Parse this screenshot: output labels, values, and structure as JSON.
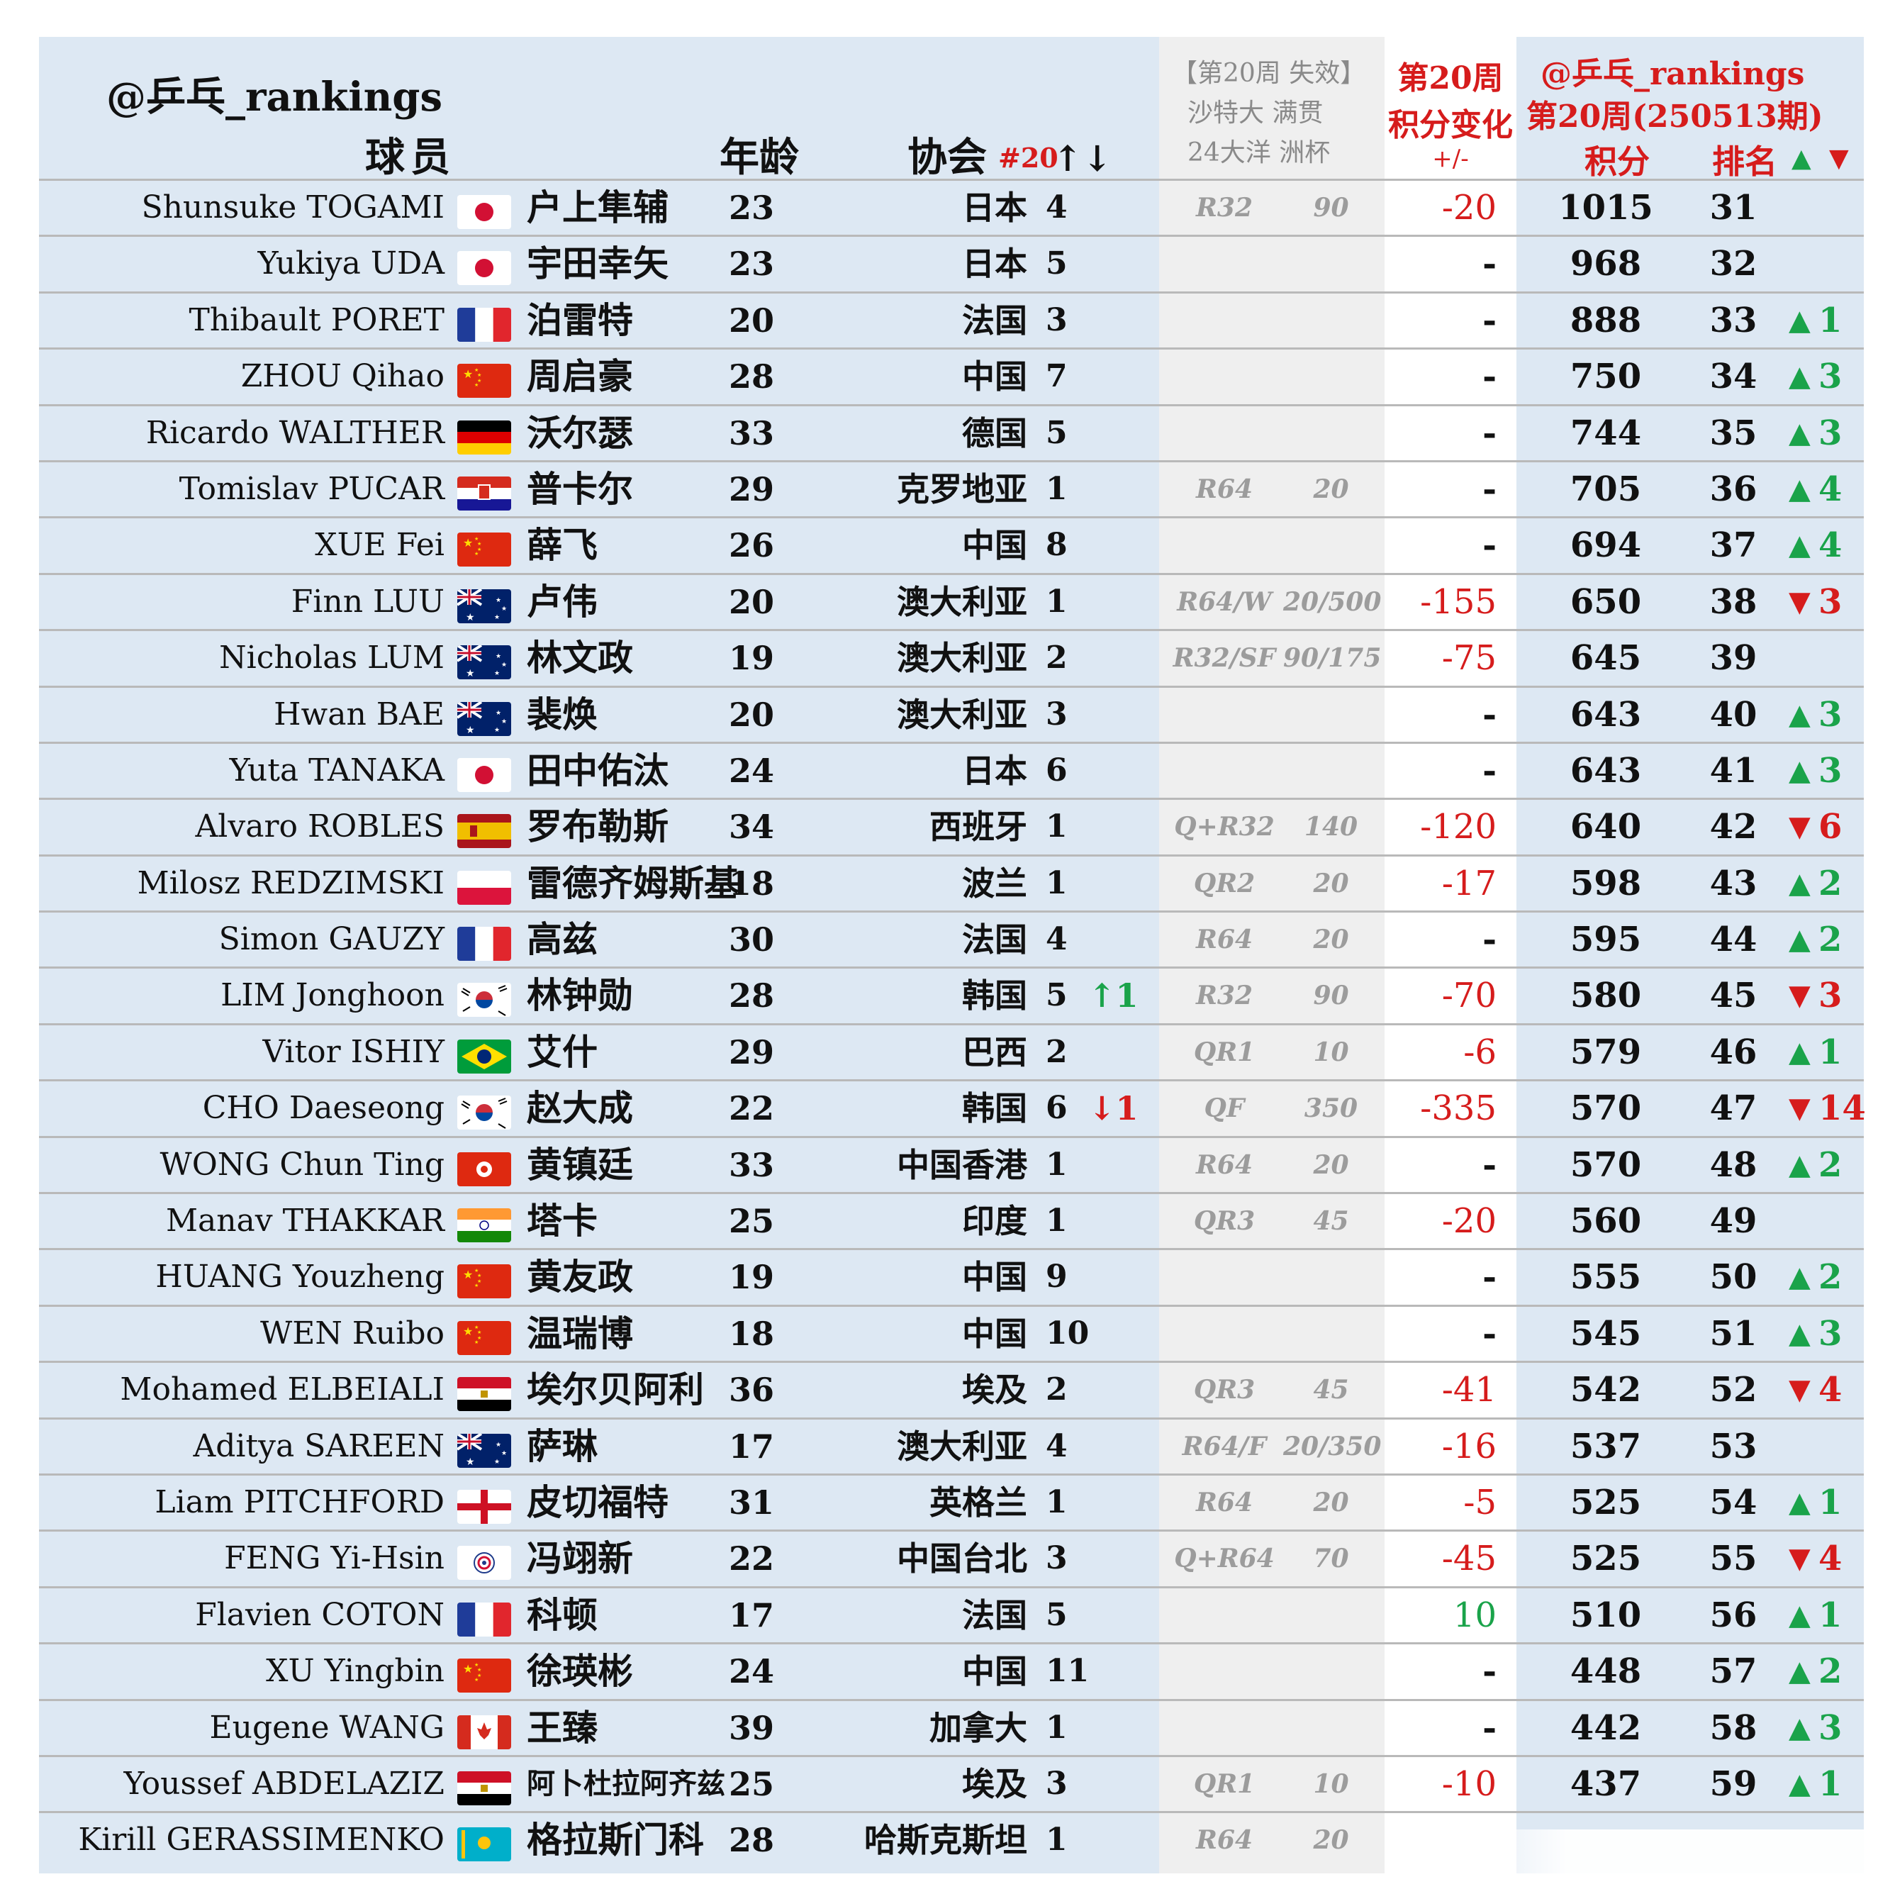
{
  "header": {
    "brand": "@乒乓_rankings",
    "player": "球员",
    "age": "年龄",
    "association": "协会",
    "assoc_rank_change": "#20",
    "assoc_rank_change_arrows": "↑↓",
    "expiry_line1": "【第20周 失效】",
    "expiry_line2": "沙特大 满贯",
    "expiry_line3": "24大洋 洲杯",
    "week": "第20周",
    "points_change": "积分变化",
    "plus_minus": "+/-",
    "brand2": "@乒乓_rankings",
    "issue": "第20周(250513期)",
    "points": "积分",
    "rank": "排名",
    "up_symbol": "▲",
    "down_symbol": "▼"
  },
  "colors": {
    "up": "#1aa34a",
    "down": "#d61c1c",
    "row_bg": "#dde8f3",
    "expiry_bg": "#efefef"
  },
  "rows": [
    {
      "en": "Shunsuke TOGAMI",
      "flag": "japan-flag",
      "cn": "户上隼辅",
      "age": "23",
      "assoc": "日本",
      "arank": "4",
      "arch": "",
      "arch_dir": "",
      "round": "R32",
      "exp": "90",
      "chg": "-20",
      "chg_type": "neg",
      "pts": "1015",
      "rank": "31",
      "dir": "",
      "mv": ""
    },
    {
      "en": "Yukiya UDA",
      "flag": "japan-flag",
      "cn": "宇田幸矢",
      "age": "23",
      "assoc": "日本",
      "arank": "5",
      "arch": "",
      "arch_dir": "",
      "round": "",
      "exp": "",
      "chg": "-",
      "chg_type": "dash",
      "pts": "968",
      "rank": "32",
      "dir": "",
      "mv": ""
    },
    {
      "en": "Thibault PORET",
      "flag": "france-flag",
      "cn": "泊雷特",
      "age": "20",
      "assoc": "法国",
      "arank": "3",
      "arch": "",
      "arch_dir": "",
      "round": "",
      "exp": "",
      "chg": "-",
      "chg_type": "dash",
      "pts": "888",
      "rank": "33",
      "dir": "▲",
      "mv": "1"
    },
    {
      "en": "ZHOU Qihao",
      "flag": "china-flag",
      "cn": "周启豪",
      "age": "28",
      "assoc": "中国",
      "arank": "7",
      "arch": "",
      "arch_dir": "",
      "round": "",
      "exp": "",
      "chg": "-",
      "chg_type": "dash",
      "pts": "750",
      "rank": "34",
      "dir": "▲",
      "mv": "3"
    },
    {
      "en": "Ricardo WALTHER",
      "flag": "germany-flag",
      "cn": "沃尔瑟",
      "age": "33",
      "assoc": "德国",
      "arank": "5",
      "arch": "",
      "arch_dir": "",
      "round": "",
      "exp": "",
      "chg": "-",
      "chg_type": "dash",
      "pts": "744",
      "rank": "35",
      "dir": "▲",
      "mv": "3"
    },
    {
      "en": "Tomislav PUCAR",
      "flag": "croatia-flag",
      "cn": "普卡尔",
      "age": "29",
      "assoc": "克罗地亚",
      "arank": "1",
      "arch": "",
      "arch_dir": "",
      "round": "R64",
      "exp": "20",
      "chg": "-",
      "chg_type": "dash",
      "pts": "705",
      "rank": "36",
      "dir": "▲",
      "mv": "4"
    },
    {
      "en": "XUE Fei",
      "flag": "china-flag",
      "cn": "薛飞",
      "age": "26",
      "assoc": "中国",
      "arank": "8",
      "arch": "",
      "arch_dir": "",
      "round": "",
      "exp": "",
      "chg": "-",
      "chg_type": "dash",
      "pts": "694",
      "rank": "37",
      "dir": "▲",
      "mv": "4"
    },
    {
      "en": "Finn LUU",
      "flag": "australia-flag",
      "cn": "卢伟",
      "age": "20",
      "assoc": "澳大利亚",
      "arank": "1",
      "arch": "",
      "arch_dir": "",
      "round": "R64/W",
      "exp": "20/500",
      "chg": "-155",
      "chg_type": "neg",
      "pts": "650",
      "rank": "38",
      "dir": "▼",
      "mv": "3"
    },
    {
      "en": "Nicholas LUM",
      "flag": "australia-flag",
      "cn": "林文政",
      "age": "19",
      "assoc": "澳大利亚",
      "arank": "2",
      "arch": "",
      "arch_dir": "",
      "round": "R32/SF",
      "exp": "90/175",
      "chg": "-75",
      "chg_type": "neg",
      "pts": "645",
      "rank": "39",
      "dir": "",
      "mv": ""
    },
    {
      "en": "Hwan BAE",
      "flag": "australia-flag",
      "cn": "裴焕",
      "age": "20",
      "assoc": "澳大利亚",
      "arank": "3",
      "arch": "",
      "arch_dir": "",
      "round": "",
      "exp": "",
      "chg": "-",
      "chg_type": "dash",
      "pts": "643",
      "rank": "40",
      "dir": "▲",
      "mv": "3"
    },
    {
      "en": "Yuta TANAKA",
      "flag": "japan-flag",
      "cn": "田中佑汰",
      "age": "24",
      "assoc": "日本",
      "arank": "6",
      "arch": "",
      "arch_dir": "",
      "round": "",
      "exp": "",
      "chg": "-",
      "chg_type": "dash",
      "pts": "643",
      "rank": "41",
      "dir": "▲",
      "mv": "3"
    },
    {
      "en": "Alvaro ROBLES",
      "flag": "spain-flag",
      "cn": "罗布勒斯",
      "age": "34",
      "assoc": "西班牙",
      "arank": "1",
      "arch": "",
      "arch_dir": "",
      "round": "Q+R32",
      "exp": "140",
      "chg": "-120",
      "chg_type": "neg",
      "pts": "640",
      "rank": "42",
      "dir": "▼",
      "mv": "6"
    },
    {
      "en": "Milosz REDZIMSKI",
      "flag": "poland-flag",
      "cn": "雷德齐姆斯基",
      "age": "18",
      "assoc": "波兰",
      "arank": "1",
      "arch": "",
      "arch_dir": "",
      "round": "QR2",
      "exp": "20",
      "chg": "-17",
      "chg_type": "neg",
      "pts": "598",
      "rank": "43",
      "dir": "▲",
      "mv": "2"
    },
    {
      "en": "Simon GAUZY",
      "flag": "france-flag",
      "cn": "高兹",
      "age": "30",
      "assoc": "法国",
      "arank": "4",
      "arch": "",
      "arch_dir": "",
      "round": "R64",
      "exp": "20",
      "chg": "-",
      "chg_type": "dash",
      "pts": "595",
      "rank": "44",
      "dir": "▲",
      "mv": "2"
    },
    {
      "en": "LIM Jonghoon",
      "flag": "korea-flag",
      "cn": "林钟勋",
      "age": "28",
      "assoc": "韩国",
      "arank": "5",
      "arch": "↑1",
      "arch_dir": "up",
      "round": "R32",
      "exp": "90",
      "chg": "-70",
      "chg_type": "neg",
      "pts": "580",
      "rank": "45",
      "dir": "▼",
      "mv": "3"
    },
    {
      "en": "Vitor ISHIY",
      "flag": "brazil-flag",
      "cn": "艾什",
      "age": "29",
      "assoc": "巴西",
      "arank": "2",
      "arch": "",
      "arch_dir": "",
      "round": "QR1",
      "exp": "10",
      "chg": "-6",
      "chg_type": "neg",
      "pts": "579",
      "rank": "46",
      "dir": "▲",
      "mv": "1"
    },
    {
      "en": "CHO Daeseong",
      "flag": "korea-flag",
      "cn": "赵大成",
      "age": "22",
      "assoc": "韩国",
      "arank": "6",
      "arch": "↓1",
      "arch_dir": "down",
      "round": "QF",
      "exp": "350",
      "chg": "-335",
      "chg_type": "neg",
      "pts": "570",
      "rank": "47",
      "dir": "▼",
      "mv": "14"
    },
    {
      "en": "WONG Chun Ting",
      "flag": "hongkong-flag",
      "cn": "黄镇廷",
      "age": "33",
      "assoc": "中国香港",
      "arank": "1",
      "arch": "",
      "arch_dir": "",
      "round": "R64",
      "exp": "20",
      "chg": "-",
      "chg_type": "dash",
      "pts": "570",
      "rank": "48",
      "dir": "▲",
      "mv": "2"
    },
    {
      "en": "Manav THAKKAR",
      "flag": "india-flag",
      "cn": "塔卡",
      "age": "25",
      "assoc": "印度",
      "arank": "1",
      "arch": "",
      "arch_dir": "",
      "round": "QR3",
      "exp": "45",
      "chg": "-20",
      "chg_type": "neg",
      "pts": "560",
      "rank": "49",
      "dir": "",
      "mv": ""
    },
    {
      "en": "HUANG Youzheng",
      "flag": "china-flag",
      "cn": "黄友政",
      "age": "19",
      "assoc": "中国",
      "arank": "9",
      "arch": "",
      "arch_dir": "",
      "round": "",
      "exp": "",
      "chg": "-",
      "chg_type": "dash",
      "pts": "555",
      "rank": "50",
      "dir": "▲",
      "mv": "2"
    },
    {
      "en": "WEN Ruibo",
      "flag": "china-flag",
      "cn": "温瑞博",
      "age": "18",
      "assoc": "中国",
      "arank": "10",
      "arch": "",
      "arch_dir": "",
      "round": "",
      "exp": "",
      "chg": "-",
      "chg_type": "dash",
      "pts": "545",
      "rank": "51",
      "dir": "▲",
      "mv": "3"
    },
    {
      "en": "Mohamed ELBEIALI",
      "flag": "egypt-flag",
      "cn": "埃尔贝阿利",
      "age": "36",
      "assoc": "埃及",
      "arank": "2",
      "arch": "",
      "arch_dir": "",
      "round": "QR3",
      "exp": "45",
      "chg": "-41",
      "chg_type": "neg",
      "pts": "542",
      "rank": "52",
      "dir": "▼",
      "mv": "4"
    },
    {
      "en": "Aditya SAREEN",
      "flag": "australia-flag",
      "cn": "萨琳",
      "age": "17",
      "assoc": "澳大利亚",
      "arank": "4",
      "arch": "",
      "arch_dir": "",
      "round": "R64/F",
      "exp": "20/350",
      "chg": "-16",
      "chg_type": "neg",
      "pts": "537",
      "rank": "53",
      "dir": "",
      "mv": ""
    },
    {
      "en": "Liam PITCHFORD",
      "flag": "england-flag",
      "cn": "皮切福特",
      "age": "31",
      "assoc": "英格兰",
      "arank": "1",
      "arch": "",
      "arch_dir": "",
      "round": "R64",
      "exp": "20",
      "chg": "-5",
      "chg_type": "neg",
      "pts": "525",
      "rank": "54",
      "dir": "▲",
      "mv": "1"
    },
    {
      "en": "FENG Yi-Hsin",
      "flag": "chinese-taipei-flag",
      "cn": "冯翊新",
      "age": "22",
      "assoc": "中国台北",
      "arank": "3",
      "arch": "",
      "arch_dir": "",
      "round": "Q+R64",
      "exp": "70",
      "chg": "-45",
      "chg_type": "neg",
      "pts": "525",
      "rank": "55",
      "dir": "▼",
      "mv": "4"
    },
    {
      "en": "Flavien COTON",
      "flag": "france-flag",
      "cn": "科顿",
      "age": "17",
      "assoc": "法国",
      "arank": "5",
      "arch": "",
      "arch_dir": "",
      "round": "",
      "exp": "",
      "chg": "10",
      "chg_type": "pos",
      "pts": "510",
      "rank": "56",
      "dir": "▲",
      "mv": "1"
    },
    {
      "en": "XU Yingbin",
      "flag": "china-flag",
      "cn": "徐瑛彬",
      "age": "24",
      "assoc": "中国",
      "arank": "11",
      "arch": "",
      "arch_dir": "",
      "round": "",
      "exp": "",
      "chg": "-",
      "chg_type": "dash",
      "pts": "448",
      "rank": "57",
      "dir": "▲",
      "mv": "2"
    },
    {
      "en": "Eugene WANG",
      "flag": "canada-flag",
      "cn": "王臻",
      "age": "39",
      "assoc": "加拿大",
      "arank": "1",
      "arch": "",
      "arch_dir": "",
      "round": "",
      "exp": "",
      "chg": "-",
      "chg_type": "dash",
      "pts": "442",
      "rank": "58",
      "dir": "▲",
      "mv": "3"
    },
    {
      "en": "Youssef ABDELAZIZ",
      "flag": "egypt-flag",
      "cn": "阿卜杜拉阿齐兹",
      "age": "25",
      "assoc": "埃及",
      "arank": "3",
      "arch": "",
      "arch_dir": "",
      "round": "QR1",
      "exp": "10",
      "chg": "-10",
      "chg_type": "neg",
      "pts": "437",
      "rank": "59",
      "dir": "▲",
      "mv": "1"
    },
    {
      "en": "Kirill GERASSIMENKO",
      "flag": "kazakhstan-flag",
      "cn": "格拉斯门科",
      "age": "28",
      "assoc": "哈斯克斯坦",
      "arank": "1",
      "arch": "",
      "arch_dir": "",
      "round": "R64",
      "exp": "20",
      "chg": "",
      "chg_type": "dash",
      "pts": "",
      "rank": "",
      "dir": "",
      "mv": ""
    }
  ]
}
